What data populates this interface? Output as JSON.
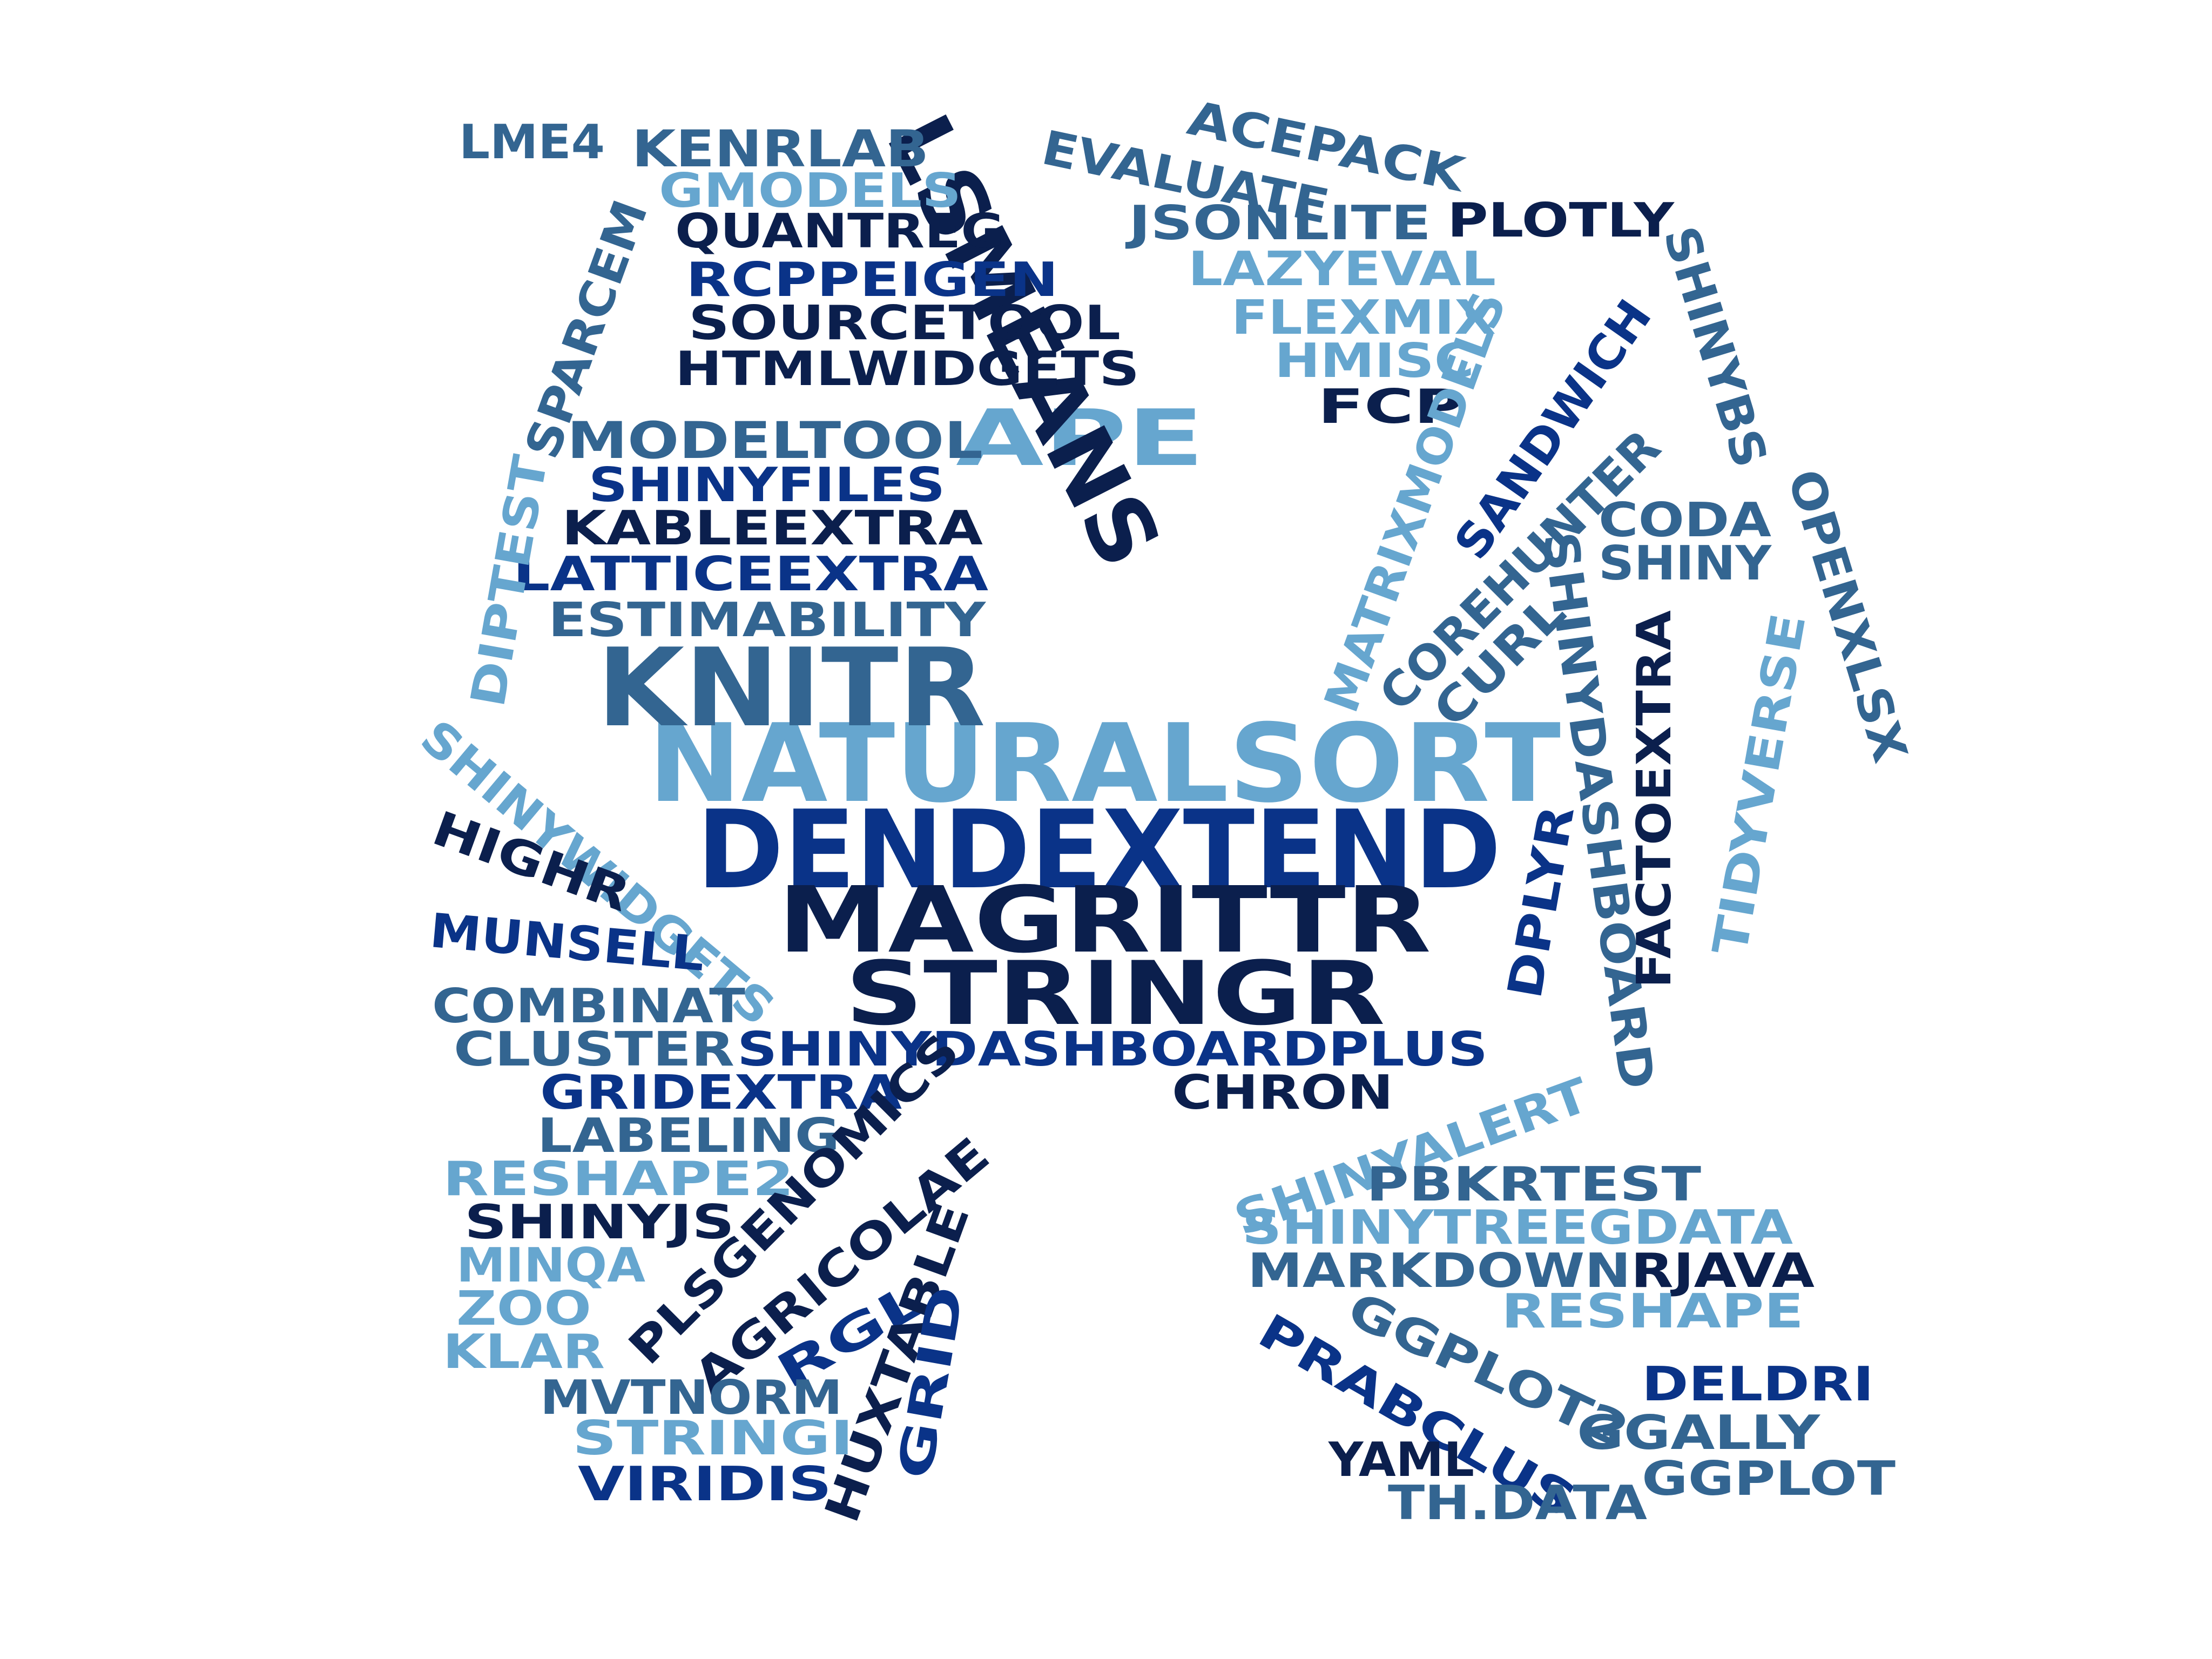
{
  "palette": {
    "navy": "#0b1f4d",
    "royal": "#0a3388",
    "steel": "#336591",
    "light": "#66a6cf",
    "background": "#ffffff"
  },
  "words": [
    {
      "text": "NATURALSORT",
      "color": "light"
    },
    {
      "text": "DENDEXTEND",
      "color": "royal"
    },
    {
      "text": "MAGRITTR",
      "color": "navy"
    },
    {
      "text": "STRINGR",
      "color": "navy"
    },
    {
      "text": "KNITR",
      "color": "steel"
    },
    {
      "text": "APE",
      "color": "light"
    },
    {
      "text": "LSMEANS",
      "color": "navy"
    },
    {
      "text": "LME4",
      "color": "steel"
    },
    {
      "text": "KENRLAB",
      "color": "steel"
    },
    {
      "text": "GMODELS",
      "color": "light"
    },
    {
      "text": "QUANTREG",
      "color": "navy"
    },
    {
      "text": "RCPPEIGEN",
      "color": "royal"
    },
    {
      "text": "SOURCETOOL",
      "color": "navy"
    },
    {
      "text": "HTMLWIDGETS",
      "color": "navy"
    },
    {
      "text": "SPARCEM",
      "color": "steel"
    },
    {
      "text": "EVALUATE",
      "color": "steel"
    },
    {
      "text": "ACEPACK",
      "color": "steel"
    },
    {
      "text": "JSONLITE",
      "color": "steel"
    },
    {
      "text": "PLOTLY",
      "color": "navy"
    },
    {
      "text": "LAZYEVAL",
      "color": "light"
    },
    {
      "text": "FLEXMIX",
      "color": "light"
    },
    {
      "text": "HMISC",
      "color": "light"
    },
    {
      "text": "FCP",
      "color": "navy"
    },
    {
      "text": "MODELTOOL",
      "color": "steel"
    },
    {
      "text": "SHINYFILES",
      "color": "royal"
    },
    {
      "text": "KABLEEXTRA",
      "color": "navy"
    },
    {
      "text": "LATTICEEXTRA",
      "color": "royal"
    },
    {
      "text": "ESTIMABILITY",
      "color": "steel"
    },
    {
      "text": "DIPTEST",
      "color": "light"
    },
    {
      "text": "MATRIXMODELS",
      "color": "light"
    },
    {
      "text": "SANDWICH",
      "color": "royal"
    },
    {
      "text": "COREHUNTER",
      "color": "steel"
    },
    {
      "text": "CURL",
      "color": "steel"
    },
    {
      "text": "CODA",
      "color": "steel"
    },
    {
      "text": "SHINY",
      "color": "steel"
    },
    {
      "text": "SHINYBS",
      "color": "steel"
    },
    {
      "text": "OPENXLSX",
      "color": "steel"
    },
    {
      "text": "SHINYDASHBOARD",
      "color": "steel"
    },
    {
      "text": "FACTOEXTRA",
      "color": "navy"
    },
    {
      "text": "TIDYVERSE",
      "color": "light"
    },
    {
      "text": "DPLYR",
      "color": "royal"
    },
    {
      "text": "SHINYWIDGETS",
      "color": "light"
    },
    {
      "text": "HIGHR",
      "color": "navy"
    },
    {
      "text": "MUNSELL",
      "color": "royal"
    },
    {
      "text": "COMBINAT",
      "color": "steel"
    },
    {
      "text": "CLUSTER",
      "color": "steel"
    },
    {
      "text": "SHINYDASHBOARDPLUS",
      "color": "royal"
    },
    {
      "text": "GRIDEXTRA",
      "color": "royal"
    },
    {
      "text": "CHRON",
      "color": "navy"
    },
    {
      "text": "LABELING",
      "color": "steel"
    },
    {
      "text": "RESHAPE2",
      "color": "light"
    },
    {
      "text": "SHINYJS",
      "color": "navy"
    },
    {
      "text": "MINQA",
      "color": "light"
    },
    {
      "text": "ZOO",
      "color": "light"
    },
    {
      "text": "KLAR",
      "color": "light"
    },
    {
      "text": "PLSGENOMICS",
      "color": "navy"
    },
    {
      "text": "AGRICOLAE",
      "color": "navy"
    },
    {
      "text": "RGL",
      "color": "royal"
    },
    {
      "text": "HUXTABLE",
      "color": "navy"
    },
    {
      "text": "GRID",
      "color": "royal"
    },
    {
      "text": "MVTNORM",
      "color": "steel"
    },
    {
      "text": "STRINGI",
      "color": "light"
    },
    {
      "text": "VIRIDIS",
      "color": "royal"
    },
    {
      "text": "SHINYALERT",
      "color": "light"
    },
    {
      "text": "PBKRTEST",
      "color": "steel"
    },
    {
      "text": "SHINYTREEGDATA",
      "color": "light"
    },
    {
      "text": "MARKDOWN",
      "color": "steel"
    },
    {
      "text": "RJAVA",
      "color": "navy"
    },
    {
      "text": "GGPLOT2",
      "color": "steel"
    },
    {
      "text": "RESHAPE",
      "color": "light"
    },
    {
      "text": "PRABCLUS",
      "color": "royal"
    },
    {
      "text": "DELDRI",
      "color": "royal"
    },
    {
      "text": "GGALLY",
      "color": "steel"
    },
    {
      "text": "YAML",
      "color": "navy"
    },
    {
      "text": "TH.DATA",
      "color": "steel"
    },
    {
      "text": "GGPLOT",
      "color": "steel"
    }
  ]
}
